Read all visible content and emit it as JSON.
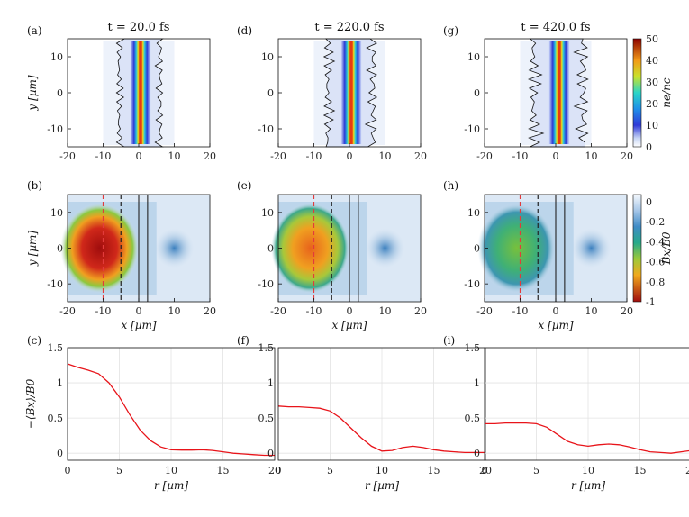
{
  "panel_titles": [
    "t = 20.0 fs",
    "t = 220.0 fs",
    "t = 420.0 fs"
  ],
  "panel_letters": {
    "row1": [
      "(a)",
      "(d)",
      "(g)"
    ],
    "row2": [
      "(b)",
      "(e)",
      "(h)"
    ],
    "row3": [
      "(c)",
      "(f)",
      "(i)"
    ]
  },
  "labels": {
    "ylabel_top": "y [µm]",
    "ylabel_mid": "y [µm]",
    "ylabel_bottom": "−⟨Bx⟩/B0",
    "xlabel_mid": "x [µm]",
    "xlabel_bottom": "r [µm]",
    "cbar_top": "ne/nc",
    "cbar_mid": "Bx/B0"
  },
  "colorbars": {
    "top": {
      "ticks": [
        "0",
        "10",
        "20",
        "30",
        "40",
        "50"
      ],
      "range": [
        0,
        50
      ]
    },
    "mid": {
      "ticks": [
        "0",
        "-0.2",
        "-0.4",
        "-0.6",
        "-0.8",
        "-1"
      ],
      "range": [
        -1,
        0
      ]
    }
  },
  "map_axes": {
    "x_ticks": [
      "-20",
      "-10",
      "0",
      "10",
      "20"
    ],
    "y_ticks": [
      "10",
      "0",
      "-10"
    ],
    "xlim": [
      -20,
      20
    ],
    "ylim": [
      -15,
      15
    ]
  },
  "line_axes": {
    "x_ticks": [
      "0",
      "5",
      "10",
      "15",
      "20"
    ],
    "y_ticks": [
      "1.5",
      "1",
      "0.5",
      "0"
    ],
    "xlim": [
      0,
      20
    ],
    "ylim": [
      -0.1,
      1.5
    ]
  },
  "chart_data": [
    {
      "type": "line",
      "panel": "(c)",
      "series": [
        {
          "color": "#e8141a",
          "x": [
            0,
            1,
            2,
            3,
            4,
            5,
            6,
            7,
            8,
            9,
            10,
            11,
            12,
            13,
            14,
            15,
            16,
            17,
            18,
            19,
            20
          ],
          "y": [
            1.27,
            1.22,
            1.18,
            1.13,
            1.0,
            0.8,
            0.55,
            0.33,
            0.18,
            0.09,
            0.05,
            0.045,
            0.045,
            0.05,
            0.04,
            0.02,
            0.0,
            -0.01,
            -0.02,
            -0.03,
            -0.03
          ]
        }
      ],
      "xlabel": "r [µm]",
      "ylabel": "−⟨Bx⟩/B0",
      "xlim": [
        0,
        20
      ],
      "ylim": [
        -0.1,
        1.5
      ]
    },
    {
      "type": "line",
      "panel": "(f)",
      "series": [
        {
          "color": "#e8141a",
          "x": [
            0,
            1,
            2,
            3,
            4,
            5,
            6,
            7,
            8,
            9,
            10,
            11,
            12,
            13,
            14,
            15,
            16,
            17,
            18,
            19,
            20
          ],
          "y": [
            0.67,
            0.66,
            0.66,
            0.65,
            0.64,
            0.6,
            0.5,
            0.36,
            0.22,
            0.1,
            0.03,
            0.04,
            0.08,
            0.1,
            0.08,
            0.05,
            0.03,
            0.02,
            0.01,
            0.01,
            0.01
          ]
        }
      ],
      "xlabel": "r [µm]",
      "xlim": [
        0,
        20
      ],
      "ylim": [
        -0.1,
        1.5
      ]
    },
    {
      "type": "line",
      "panel": "(i)",
      "series": [
        {
          "color": "#e8141a",
          "x": [
            0,
            1,
            2,
            3,
            4,
            5,
            6,
            7,
            8,
            9,
            10,
            11,
            12,
            13,
            14,
            15,
            16,
            17,
            18,
            19,
            20
          ],
          "y": [
            0.42,
            0.42,
            0.43,
            0.43,
            0.43,
            0.42,
            0.37,
            0.27,
            0.17,
            0.12,
            0.1,
            0.12,
            0.13,
            0.12,
            0.09,
            0.05,
            0.02,
            0.01,
            0.0,
            0.02,
            0.04
          ]
        }
      ],
      "xlabel": "r [µm]",
      "xlim": [
        0,
        20
      ],
      "ylim": [
        -0.1,
        1.5
      ]
    },
    {
      "type": "heatmap",
      "panels": [
        "(a)",
        "(d)",
        "(g)"
      ],
      "quantity": "ne/nc",
      "colormap": "jet-white",
      "range": [
        0,
        50
      ],
      "xlim": [
        -20,
        20
      ],
      "ylim": [
        -15,
        15
      ],
      "features": {
        "slab_center_x": [
          0.5,
          0.5,
          1.0
        ],
        "slab_halfwidth_um": 1.5,
        "contour_color": "#000000"
      }
    },
    {
      "type": "heatmap",
      "panels": [
        "(b)",
        "(e)",
        "(h)"
      ],
      "quantity": "Bx/B0",
      "colormap": "jet-reversed-white",
      "range": [
        -1,
        0
      ],
      "xlim": [
        -20,
        20
      ],
      "ylim": [
        -15,
        15
      ],
      "peak_amplitude": [
        1.0,
        0.68,
        0.45
      ],
      "reference_lines_x": {
        "red_dashed": -10,
        "black_dashed": -5,
        "black_solid": [
          0,
          2.5
        ],
        "colors": {
          "red": "#e23b3b",
          "black": "#222222"
        }
      }
    }
  ]
}
